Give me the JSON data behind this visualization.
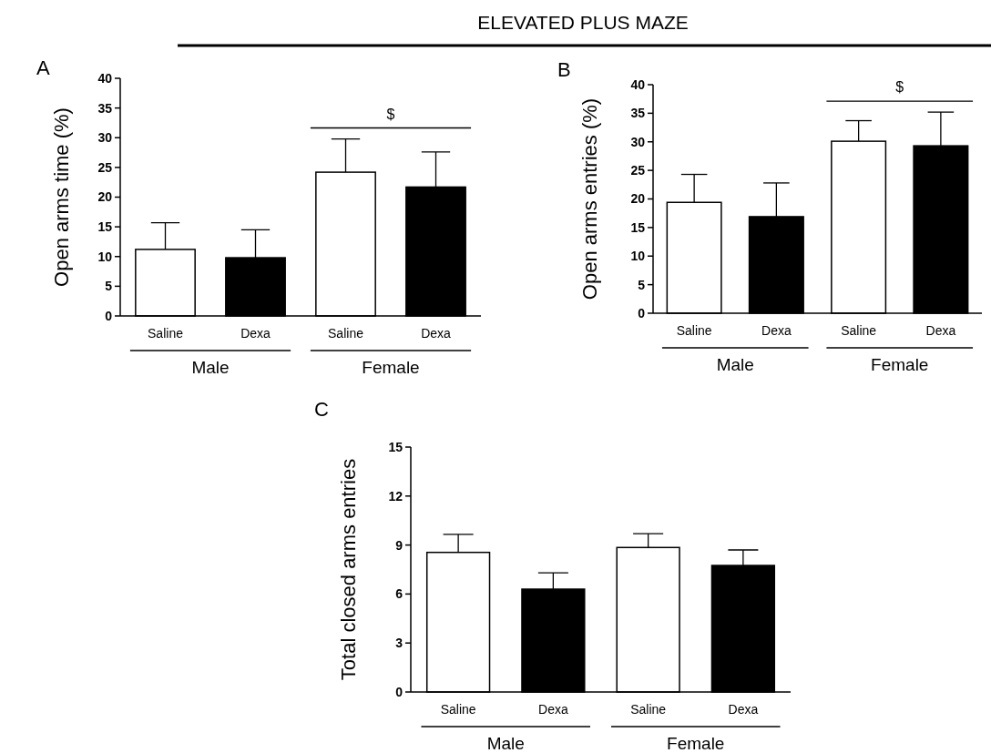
{
  "chart_data": [
    {
      "type": "bar",
      "title": "ELEVATED PLUS MAZE",
      "ylabel": "Open arms time (%)",
      "categories": [
        "Saline",
        "Dexa",
        "Saline",
        "Dexa"
      ],
      "values": [
        11.2,
        9.8,
        24.2,
        21.7
      ],
      "colors": [
        "#ffffff",
        "#000000",
        "#ffffff",
        "#000000"
      ],
      "errors": [
        [
          11.2,
          15.7
        ],
        [
          9.8,
          14.5
        ],
        [
          24.2,
          29.8
        ],
        [
          21.7,
          27.6
        ]
      ],
      "ylim": [
        0,
        40
      ],
      "yticks": [
        0,
        5,
        10,
        15,
        20,
        25,
        30,
        35,
        40
      ],
      "grid": false,
      "annotations": [
        "A",
        "Male",
        "Female",
        "$"
      ]
    },
    {
      "type": "bar",
      "ylabel": "Open arms entries (%)",
      "categories": [
        "Saline",
        "Dexa",
        "Saline",
        "Dexa"
      ],
      "values": [
        19.4,
        16.9,
        30.1,
        29.3
      ],
      "colors": [
        "#ffffff",
        "#000000",
        "#ffffff",
        "#000000"
      ],
      "errors": [
        [
          19.4,
          24.3
        ],
        [
          16.9,
          22.8
        ],
        [
          30.1,
          33.7
        ],
        [
          29.3,
          35.2
        ]
      ],
      "ylim": [
        0,
        40
      ],
      "yticks": [
        0,
        5,
        10,
        15,
        20,
        25,
        30,
        35,
        40
      ],
      "grid": false,
      "annotations": [
        "B",
        "Male",
        "Female",
        "$"
      ]
    },
    {
      "type": "bar",
      "ylabel": "Total closed arms entries",
      "categories": [
        "Saline",
        "Dexa",
        "Saline",
        "Dexa"
      ],
      "values": [
        8.55,
        6.3,
        8.85,
        7.75
      ],
      "colors": [
        "#ffffff",
        "#000000",
        "#ffffff",
        "#000000"
      ],
      "errors": [
        [
          8.55,
          9.65
        ],
        [
          6.3,
          7.3
        ],
        [
          8.85,
          9.7
        ],
        [
          7.75,
          8.7
        ]
      ],
      "ylim": [
        0,
        15
      ],
      "yticks": [
        0,
        3,
        6,
        9,
        12,
        15
      ],
      "grid": false,
      "annotations": [
        "C",
        "Male",
        "Female"
      ]
    }
  ]
}
